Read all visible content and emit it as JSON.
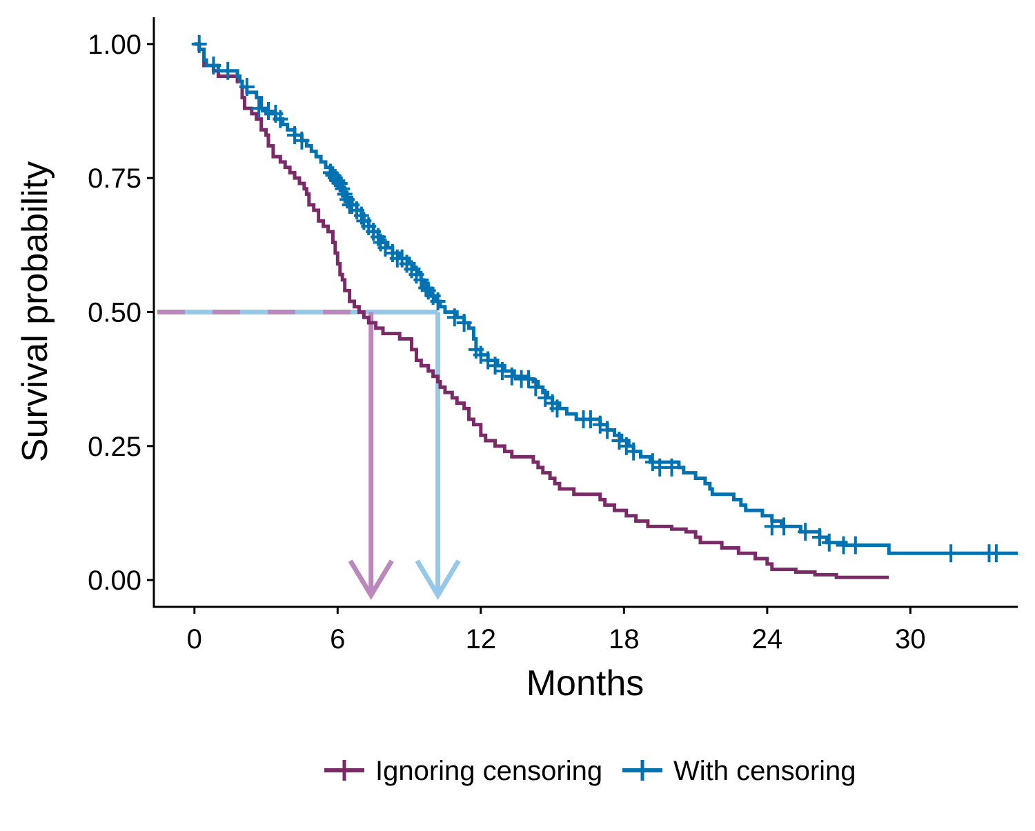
{
  "chart_data": {
    "type": "line",
    "step": true,
    "xlabel": "Months",
    "ylabel": "Survival probability",
    "xlim": [
      -1.7,
      34.5
    ],
    "ylim": [
      -0.05,
      1.05
    ],
    "x_ticks": [
      0,
      6,
      12,
      18,
      24,
      30
    ],
    "y_ticks": [
      0.0,
      0.25,
      0.5,
      0.75,
      1.0
    ],
    "y_tick_labels": [
      "0.00",
      "0.25",
      "0.50",
      "0.75",
      "1.00"
    ],
    "grid": false,
    "legend_position": "bottom",
    "series": [
      {
        "name": "Ignoring censoring",
        "color": "#7b2a68",
        "median_color": "#bb88bb",
        "median": 7.4,
        "points": [
          [
            0.0,
            1.0
          ],
          [
            0.2,
            0.99
          ],
          [
            0.4,
            0.96
          ],
          [
            0.8,
            0.95
          ],
          [
            1.0,
            0.94
          ],
          [
            1.8,
            0.93
          ],
          [
            2.0,
            0.9
          ],
          [
            2.1,
            0.88
          ],
          [
            2.4,
            0.87
          ],
          [
            2.6,
            0.86
          ],
          [
            2.8,
            0.84
          ],
          [
            3.0,
            0.83
          ],
          [
            3.1,
            0.81
          ],
          [
            3.3,
            0.79
          ],
          [
            3.6,
            0.78
          ],
          [
            3.8,
            0.77
          ],
          [
            4.0,
            0.76
          ],
          [
            4.2,
            0.75
          ],
          [
            4.4,
            0.74
          ],
          [
            4.6,
            0.73
          ],
          [
            4.7,
            0.72
          ],
          [
            4.8,
            0.7
          ],
          [
            5.0,
            0.69
          ],
          [
            5.2,
            0.67
          ],
          [
            5.4,
            0.66
          ],
          [
            5.6,
            0.65
          ],
          [
            5.8,
            0.63
          ],
          [
            5.9,
            0.61
          ],
          [
            6.0,
            0.59
          ],
          [
            6.1,
            0.57
          ],
          [
            6.2,
            0.56
          ],
          [
            6.3,
            0.54
          ],
          [
            6.5,
            0.52
          ],
          [
            6.7,
            0.51
          ],
          [
            6.9,
            0.5
          ],
          [
            7.1,
            0.49
          ],
          [
            7.3,
            0.48
          ],
          [
            7.6,
            0.47
          ],
          [
            7.9,
            0.46
          ],
          [
            8.6,
            0.45
          ],
          [
            9.1,
            0.43
          ],
          [
            9.3,
            0.41
          ],
          [
            9.5,
            0.4
          ],
          [
            9.8,
            0.39
          ],
          [
            10.0,
            0.38
          ],
          [
            10.2,
            0.37
          ],
          [
            10.3,
            0.36
          ],
          [
            10.5,
            0.35
          ],
          [
            10.8,
            0.34
          ],
          [
            11.0,
            0.33
          ],
          [
            11.3,
            0.32
          ],
          [
            11.5,
            0.3
          ],
          [
            11.7,
            0.29
          ],
          [
            12.0,
            0.27
          ],
          [
            12.2,
            0.26
          ],
          [
            12.6,
            0.25
          ],
          [
            13.0,
            0.24
          ],
          [
            13.3,
            0.23
          ],
          [
            14.2,
            0.22
          ],
          [
            14.4,
            0.21
          ],
          [
            14.6,
            0.2
          ],
          [
            14.9,
            0.19
          ],
          [
            15.1,
            0.18
          ],
          [
            15.3,
            0.17
          ],
          [
            15.9,
            0.16
          ],
          [
            17.0,
            0.15
          ],
          [
            17.2,
            0.14
          ],
          [
            17.6,
            0.13
          ],
          [
            18.1,
            0.12
          ],
          [
            18.5,
            0.11
          ],
          [
            19.0,
            0.1
          ],
          [
            20.0,
            0.095
          ],
          [
            20.6,
            0.09
          ],
          [
            21.0,
            0.08
          ],
          [
            21.2,
            0.07
          ],
          [
            22.1,
            0.06
          ],
          [
            22.8,
            0.05
          ],
          [
            23.5,
            0.04
          ],
          [
            24.0,
            0.03
          ],
          [
            24.2,
            0.02
          ],
          [
            25.2,
            0.015
          ],
          [
            26.0,
            0.01
          ],
          [
            26.9,
            0.005
          ],
          [
            29.1,
            0.005
          ]
        ]
      },
      {
        "name": "With censoring",
        "color": "#0072b2",
        "median_color": "#96c8ea",
        "median": 10.2,
        "points": [
          [
            0.0,
            1.0
          ],
          [
            0.2,
            0.99
          ],
          [
            0.4,
            0.97
          ],
          [
            0.5,
            0.96
          ],
          [
            1.0,
            0.95
          ],
          [
            1.8,
            0.94
          ],
          [
            1.9,
            0.93
          ],
          [
            2.0,
            0.92
          ],
          [
            2.2,
            0.91
          ],
          [
            2.6,
            0.9
          ],
          [
            2.8,
            0.88
          ],
          [
            3.0,
            0.87
          ],
          [
            3.4,
            0.86
          ],
          [
            3.7,
            0.85
          ],
          [
            3.9,
            0.84
          ],
          [
            4.2,
            0.83
          ],
          [
            4.5,
            0.82
          ],
          [
            4.7,
            0.81
          ],
          [
            4.9,
            0.8
          ],
          [
            5.1,
            0.79
          ],
          [
            5.3,
            0.78
          ],
          [
            5.5,
            0.77
          ],
          [
            5.7,
            0.76
          ],
          [
            5.8,
            0.75
          ],
          [
            6.0,
            0.74
          ],
          [
            6.2,
            0.73
          ],
          [
            6.3,
            0.72
          ],
          [
            6.4,
            0.71
          ],
          [
            6.6,
            0.7
          ],
          [
            6.8,
            0.69
          ],
          [
            7.0,
            0.68
          ],
          [
            7.1,
            0.67
          ],
          [
            7.3,
            0.66
          ],
          [
            7.5,
            0.65
          ],
          [
            7.7,
            0.64
          ],
          [
            7.9,
            0.63
          ],
          [
            8.1,
            0.62
          ],
          [
            8.3,
            0.61
          ],
          [
            8.6,
            0.6
          ],
          [
            9.0,
            0.59
          ],
          [
            9.2,
            0.58
          ],
          [
            9.4,
            0.57
          ],
          [
            9.5,
            0.56
          ],
          [
            9.6,
            0.55
          ],
          [
            9.8,
            0.54
          ],
          [
            9.9,
            0.53
          ],
          [
            10.1,
            0.52
          ],
          [
            10.3,
            0.51
          ],
          [
            10.5,
            0.5
          ],
          [
            11.0,
            0.49
          ],
          [
            11.3,
            0.48
          ],
          [
            11.5,
            0.47
          ],
          [
            11.7,
            0.45
          ],
          [
            11.8,
            0.43
          ],
          [
            12.0,
            0.42
          ],
          [
            12.3,
            0.41
          ],
          [
            12.7,
            0.4
          ],
          [
            13.0,
            0.39
          ],
          [
            13.4,
            0.38
          ],
          [
            14.0,
            0.375
          ],
          [
            14.2,
            0.37
          ],
          [
            14.4,
            0.36
          ],
          [
            14.6,
            0.35
          ],
          [
            14.8,
            0.34
          ],
          [
            15.0,
            0.33
          ],
          [
            15.3,
            0.32
          ],
          [
            15.6,
            0.31
          ],
          [
            16.0,
            0.3
          ],
          [
            17.0,
            0.29
          ],
          [
            17.3,
            0.28
          ],
          [
            17.6,
            0.27
          ],
          [
            17.9,
            0.26
          ],
          [
            18.2,
            0.25
          ],
          [
            18.4,
            0.24
          ],
          [
            18.7,
            0.23
          ],
          [
            19.1,
            0.22
          ],
          [
            20.3,
            0.21
          ],
          [
            20.5,
            0.2
          ],
          [
            21.0,
            0.19
          ],
          [
            21.4,
            0.18
          ],
          [
            21.6,
            0.17
          ],
          [
            21.7,
            0.16
          ],
          [
            22.6,
            0.15
          ],
          [
            22.9,
            0.14
          ],
          [
            23.1,
            0.13
          ],
          [
            23.8,
            0.12
          ],
          [
            24.2,
            0.11
          ],
          [
            24.6,
            0.1
          ],
          [
            25.4,
            0.09
          ],
          [
            26.2,
            0.08
          ],
          [
            26.5,
            0.07
          ],
          [
            27.3,
            0.065
          ],
          [
            29.1,
            0.05
          ],
          [
            34.5,
            0.05
          ]
        ],
        "censor_marks": [
          [
            0.2,
            1.0
          ],
          [
            0.8,
            0.96
          ],
          [
            1.4,
            0.95
          ],
          [
            2.2,
            0.92
          ],
          [
            2.7,
            0.88
          ],
          [
            3.1,
            0.875
          ],
          [
            3.4,
            0.87
          ],
          [
            3.6,
            0.86
          ],
          [
            4.2,
            0.83
          ],
          [
            4.5,
            0.82
          ],
          [
            5.7,
            0.76
          ],
          [
            5.8,
            0.755
          ],
          [
            5.9,
            0.75
          ],
          [
            6.0,
            0.745
          ],
          [
            6.1,
            0.74
          ],
          [
            6.2,
            0.73
          ],
          [
            6.3,
            0.72
          ],
          [
            6.4,
            0.71
          ],
          [
            6.5,
            0.7
          ],
          [
            6.6,
            0.7
          ],
          [
            6.8,
            0.69
          ],
          [
            7.0,
            0.68
          ],
          [
            7.1,
            0.67
          ],
          [
            7.3,
            0.66
          ],
          [
            7.5,
            0.65
          ],
          [
            7.7,
            0.64
          ],
          [
            7.8,
            0.63
          ],
          [
            8.0,
            0.62
          ],
          [
            8.3,
            0.61
          ],
          [
            8.5,
            0.6
          ],
          [
            8.7,
            0.6
          ],
          [
            8.9,
            0.59
          ],
          [
            9.1,
            0.58
          ],
          [
            9.3,
            0.57
          ],
          [
            9.5,
            0.56
          ],
          [
            9.7,
            0.545
          ],
          [
            9.8,
            0.54
          ],
          [
            10.0,
            0.53
          ],
          [
            10.2,
            0.52
          ],
          [
            10.9,
            0.49
          ],
          [
            11.3,
            0.48
          ],
          [
            11.8,
            0.43
          ],
          [
            12.0,
            0.42
          ],
          [
            12.3,
            0.41
          ],
          [
            12.6,
            0.4
          ],
          [
            12.9,
            0.39
          ],
          [
            13.3,
            0.38
          ],
          [
            13.7,
            0.375
          ],
          [
            14.0,
            0.375
          ],
          [
            14.3,
            0.36
          ],
          [
            14.7,
            0.34
          ],
          [
            15.0,
            0.33
          ],
          [
            15.2,
            0.32
          ],
          [
            16.3,
            0.3
          ],
          [
            16.6,
            0.3
          ],
          [
            17.0,
            0.29
          ],
          [
            17.3,
            0.28
          ],
          [
            17.8,
            0.26
          ],
          [
            18.1,
            0.25
          ],
          [
            18.4,
            0.24
          ],
          [
            19.2,
            0.22
          ],
          [
            19.5,
            0.21
          ],
          [
            20.0,
            0.21
          ],
          [
            24.2,
            0.1
          ],
          [
            24.7,
            0.1
          ],
          [
            25.6,
            0.09
          ],
          [
            26.2,
            0.08
          ],
          [
            26.6,
            0.07
          ],
          [
            27.2,
            0.065
          ],
          [
            27.7,
            0.065
          ],
          [
            31.7,
            0.05
          ],
          [
            33.3,
            0.05
          ],
          [
            33.6,
            0.05
          ]
        ]
      }
    ]
  }
}
